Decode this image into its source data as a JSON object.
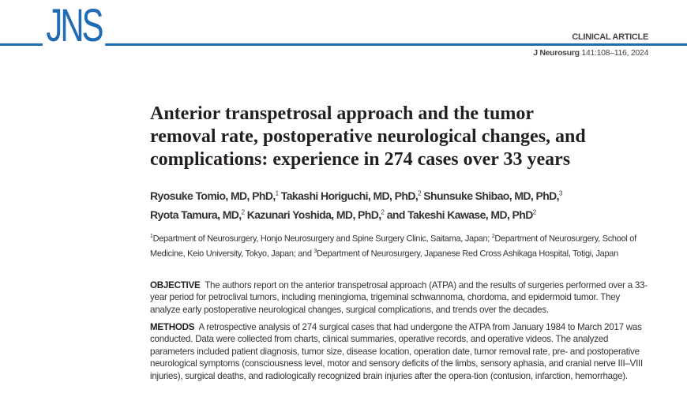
{
  "header": {
    "logo": "JNS",
    "article_type": "CLINICAL ARTICLE",
    "journal": "J Neurosurg",
    "citation": "141:108–116, 2024",
    "accent": "#1f6bb5"
  },
  "title_lines": [
    "Anterior transpetrosal approach and the tumor",
    "removal rate, postoperative neurological changes, and",
    "complications: experience in 274 cases over 33 years"
  ],
  "authors": [
    {
      "name": "Ryosuke Tomio, MD, PhD,",
      "sup": "1"
    },
    {
      "name": "Takashi Horiguchi, MD, PhD,",
      "sup": "2"
    },
    {
      "name": "Shunsuke Shibao, MD, PhD,",
      "sup": "3"
    },
    {
      "name": "Ryota Tamura, MD,",
      "sup": "2"
    },
    {
      "name": "Kazunari Yoshida, MD, PhD,",
      "sup": "2"
    },
    {
      "name": "and Takeshi Kawase, MD, PhD",
      "sup": "2"
    }
  ],
  "affiliations": [
    {
      "sup": "1",
      "text": "Department of Neurosurgery, Honjo Neurosurgery and Spine Surgery Clinic, Saitama, Japan; "
    },
    {
      "sup": "2",
      "text": "Department of Neurosurgery, School of Medicine, Keio University, Tokyo, Japan; and "
    },
    {
      "sup": "3",
      "text": "Department of Neurosurgery, Japanese Red Cross Ashikaga Hospital, Totigi, Japan"
    }
  ],
  "abstract": {
    "objective": {
      "label": "OBJECTIVE",
      "text": "The authors report on the anterior transpetrosal approach (ATPA) and the results of surgeries performed over a 33-year period for petroclival tumors, including meningioma, trigeminal schwannoma, chordoma, and epidermoid tumor. They analyze early postoperative neurological changes, surgical complications, and trends over the decades."
    },
    "methods": {
      "label": "METHODS",
      "text": "A retrospective analysis of 274 surgical cases that had undergone the ATPA from January 1984 to March 2017 was conducted. Data were collected from charts, clinical summaries, operative records, and operative videos. The analyzed parameters included patient diagnosis, tumor size, disease location, operation date, tumor removal rate, pre- and postoperative neurological symptoms (consciousness level, motor and sensory deficits of the limbs, sensory aphasia, and cranial nerve III–VIII injuries), surgical deaths, and radiologically recognized brain injuries after the opera-tion (contusion, infarction, hemorrhage)."
    }
  }
}
